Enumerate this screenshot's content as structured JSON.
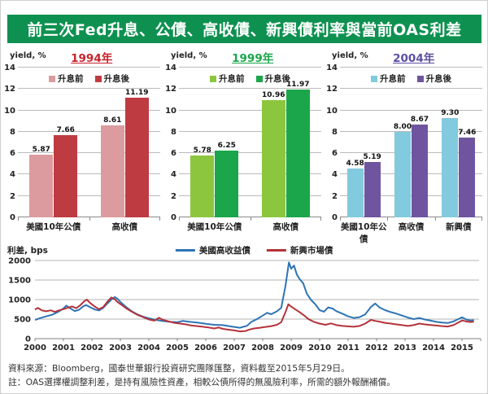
{
  "title": "前三次Fed升息、公債、高收債、新興債利率與當前OAS利差",
  "header": {
    "bg_color": "#0E9150"
  },
  "chart_data": [
    {
      "type": "bar",
      "year_label": "1994年",
      "year_color": "#C8232C",
      "y_axis_label": "yield, %",
      "ylim": [
        0,
        14
      ],
      "ytick_step": 2,
      "bar_colors": [
        "#DC9B9E",
        "#BF3B42"
      ],
      "categories": [
        "美國10年公債",
        "高收債"
      ],
      "series": [
        {
          "name": "升息前",
          "values": [
            5.87,
            8.61
          ]
        },
        {
          "name": "升息後",
          "values": [
            7.66,
            11.19
          ]
        }
      ]
    },
    {
      "type": "bar",
      "year_label": "1999年",
      "year_color": "#1BA64B",
      "y_axis_label": "yield, %",
      "ylim": [
        0,
        14
      ],
      "ytick_step": 2,
      "bar_colors": [
        "#8CC63F",
        "#1BA64B"
      ],
      "categories": [
        "美國10年公債",
        "高收債"
      ],
      "series": [
        {
          "name": "升息前",
          "values": [
            5.78,
            10.96
          ]
        },
        {
          "name": "升息後",
          "values": [
            6.25,
            11.97
          ]
        }
      ]
    },
    {
      "type": "bar",
      "year_label": "2004年",
      "year_color": "#5C50A1",
      "y_axis_label": "yield, %",
      "ylim": [
        0,
        14
      ],
      "ytick_step": 2,
      "bar_colors": [
        "#82CADD",
        "#6F559F"
      ],
      "categories": [
        "美國10年公債",
        "高收債",
        "新興債"
      ],
      "series": [
        {
          "name": "升息前",
          "values": [
            4.58,
            8.0,
            9.3
          ]
        },
        {
          "name": "升息後",
          "values": [
            5.19,
            8.67,
            7.46
          ]
        }
      ]
    },
    {
      "type": "line",
      "y_axis_label": "利差, bps",
      "ylim": [
        0,
        2000
      ],
      "yticks": [
        0,
        500,
        1000,
        1500,
        2000
      ],
      "xlim": [
        2000,
        2015.6
      ],
      "xticks": [
        2000,
        2001,
        2002,
        2003,
        2004,
        2005,
        2006,
        2007,
        2008,
        2009,
        2010,
        2011,
        2012,
        2013,
        2014,
        2015
      ],
      "series": [
        {
          "name": "美國高收益債",
          "color": "#2E74B5",
          "points": [
            [
              2000.0,
              480
            ],
            [
              2000.2,
              530
            ],
            [
              2000.4,
              570
            ],
            [
              2000.6,
              610
            ],
            [
              2000.8,
              680
            ],
            [
              2001.0,
              770
            ],
            [
              2001.1,
              845
            ],
            [
              2001.25,
              770
            ],
            [
              2001.4,
              705
            ],
            [
              2001.55,
              740
            ],
            [
              2001.7,
              830
            ],
            [
              2001.8,
              860
            ],
            [
              2001.95,
              800
            ],
            [
              2002.1,
              745
            ],
            [
              2002.25,
              720
            ],
            [
              2002.4,
              790
            ],
            [
              2002.55,
              905
            ],
            [
              2002.7,
              1010
            ],
            [
              2002.8,
              1065
            ],
            [
              2002.9,
              1020
            ],
            [
              2003.0,
              940
            ],
            [
              2003.2,
              810
            ],
            [
              2003.4,
              700
            ],
            [
              2003.6,
              620
            ],
            [
              2003.8,
              560
            ],
            [
              2004.0,
              520
            ],
            [
              2004.25,
              480
            ],
            [
              2004.5,
              450
            ],
            [
              2004.75,
              430
            ],
            [
              2005.0,
              420
            ],
            [
              2005.2,
              455
            ],
            [
              2005.45,
              430
            ],
            [
              2005.7,
              410
            ],
            [
              2006.0,
              380
            ],
            [
              2006.3,
              355
            ],
            [
              2006.6,
              345
            ],
            [
              2006.9,
              310
            ],
            [
              2007.2,
              280
            ],
            [
              2007.45,
              330
            ],
            [
              2007.6,
              430
            ],
            [
              2007.8,
              500
            ],
            [
              2008.0,
              590
            ],
            [
              2008.15,
              660
            ],
            [
              2008.3,
              625
            ],
            [
              2008.5,
              700
            ],
            [
              2008.65,
              790
            ],
            [
              2008.8,
              1350
            ],
            [
              2008.92,
              1950
            ],
            [
              2009.0,
              1790
            ],
            [
              2009.1,
              1870
            ],
            [
              2009.2,
              1640
            ],
            [
              2009.3,
              1520
            ],
            [
              2009.42,
              1420
            ],
            [
              2009.55,
              1150
            ],
            [
              2009.7,
              990
            ],
            [
              2009.85,
              880
            ],
            [
              2010.0,
              730
            ],
            [
              2010.15,
              690
            ],
            [
              2010.3,
              800
            ],
            [
              2010.45,
              770
            ],
            [
              2010.6,
              700
            ],
            [
              2010.8,
              640
            ],
            [
              2011.0,
              570
            ],
            [
              2011.2,
              530
            ],
            [
              2011.4,
              550
            ],
            [
              2011.6,
              620
            ],
            [
              2011.8,
              810
            ],
            [
              2011.95,
              900
            ],
            [
              2012.1,
              800
            ],
            [
              2012.3,
              730
            ],
            [
              2012.5,
              680
            ],
            [
              2012.7,
              640
            ],
            [
              2012.9,
              590
            ],
            [
              2013.1,
              540
            ],
            [
              2013.3,
              500
            ],
            [
              2013.5,
              530
            ],
            [
              2013.7,
              490
            ],
            [
              2013.9,
              460
            ],
            [
              2014.1,
              430
            ],
            [
              2014.3,
              410
            ],
            [
              2014.5,
              400
            ],
            [
              2014.7,
              440
            ],
            [
              2014.9,
              510
            ],
            [
              2015.0,
              545
            ],
            [
              2015.15,
              490
            ],
            [
              2015.3,
              465
            ],
            [
              2015.42,
              475
            ]
          ]
        },
        {
          "name": "新興市場債",
          "color": "#B4333B",
          "points": [
            [
              2000.0,
              745
            ],
            [
              2000.1,
              785
            ],
            [
              2000.25,
              720
            ],
            [
              2000.4,
              700
            ],
            [
              2000.55,
              725
            ],
            [
              2000.7,
              685
            ],
            [
              2000.85,
              725
            ],
            [
              2001.0,
              755
            ],
            [
              2001.15,
              790
            ],
            [
              2001.3,
              825
            ],
            [
              2001.45,
              780
            ],
            [
              2001.6,
              860
            ],
            [
              2001.72,
              950
            ],
            [
              2001.82,
              1000
            ],
            [
              2001.95,
              905
            ],
            [
              2002.1,
              820
            ],
            [
              2002.25,
              755
            ],
            [
              2002.4,
              810
            ],
            [
              2002.55,
              950
            ],
            [
              2002.68,
              1055
            ],
            [
              2002.8,
              1010
            ],
            [
              2002.92,
              925
            ],
            [
              2003.05,
              860
            ],
            [
              2003.2,
              780
            ],
            [
              2003.4,
              690
            ],
            [
              2003.6,
              610
            ],
            [
              2003.8,
              550
            ],
            [
              2004.0,
              490
            ],
            [
              2004.2,
              460
            ],
            [
              2004.35,
              535
            ],
            [
              2004.5,
              480
            ],
            [
              2004.7,
              440
            ],
            [
              2004.9,
              405
            ],
            [
              2005.1,
              385
            ],
            [
              2005.3,
              365
            ],
            [
              2005.5,
              335
            ],
            [
              2005.7,
              320
            ],
            [
              2005.9,
              305
            ],
            [
              2006.1,
              285
            ],
            [
              2006.3,
              260
            ],
            [
              2006.45,
              285
            ],
            [
              2006.6,
              250
            ],
            [
              2006.8,
              230
            ],
            [
              2007.0,
              210
            ],
            [
              2007.2,
              185
            ],
            [
              2007.4,
              195
            ],
            [
              2007.55,
              235
            ],
            [
              2007.7,
              260
            ],
            [
              2007.9,
              280
            ],
            [
              2008.1,
              300
            ],
            [
              2008.3,
              320
            ],
            [
              2008.5,
              355
            ],
            [
              2008.65,
              420
            ],
            [
              2008.8,
              680
            ],
            [
              2008.9,
              880
            ],
            [
              2009.0,
              820
            ],
            [
              2009.15,
              745
            ],
            [
              2009.3,
              675
            ],
            [
              2009.45,
              595
            ],
            [
              2009.6,
              505
            ],
            [
              2009.8,
              430
            ],
            [
              2010.0,
              385
            ],
            [
              2010.2,
              355
            ],
            [
              2010.4,
              390
            ],
            [
              2010.6,
              345
            ],
            [
              2010.8,
              325
            ],
            [
              2011.0,
              315
            ],
            [
              2011.2,
              305
            ],
            [
              2011.4,
              325
            ],
            [
              2011.6,
              385
            ],
            [
              2011.8,
              480
            ],
            [
              2011.95,
              455
            ],
            [
              2012.1,
              435
            ],
            [
              2012.3,
              405
            ],
            [
              2012.5,
              385
            ],
            [
              2012.7,
              365
            ],
            [
              2012.9,
              345
            ],
            [
              2013.1,
              325
            ],
            [
              2013.3,
              345
            ],
            [
              2013.5,
              385
            ],
            [
              2013.7,
              365
            ],
            [
              2013.9,
              350
            ],
            [
              2014.1,
              335
            ],
            [
              2014.3,
              320
            ],
            [
              2014.5,
              310
            ],
            [
              2014.7,
              345
            ],
            [
              2014.9,
              425
            ],
            [
              2015.0,
              465
            ],
            [
              2015.15,
              440
            ],
            [
              2015.3,
              425
            ],
            [
              2015.42,
              435
            ]
          ]
        }
      ]
    }
  ],
  "footer": {
    "source": "資料來源：Bloomberg，國泰世華銀行投資研究團隊匯整，資料截至2015年5月29日。",
    "note": "註：OAS選擇權調整利差，是持有風險性資產，相較公債所得的無風險利率，所需的額外報酬補償。"
  }
}
